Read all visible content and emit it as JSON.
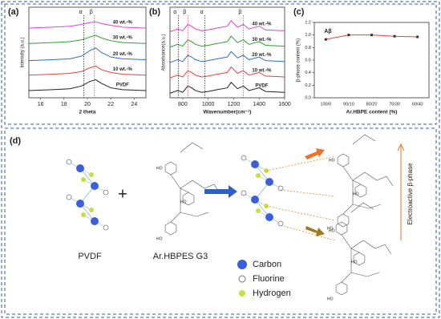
{
  "chart_data": [
    {
      "type": "line",
      "panel": "(a)",
      "xlabel": "2 theta",
      "ylabel": "Intensity (a.u.)",
      "xlim": [
        15,
        25
      ],
      "xticks": [
        16,
        18,
        20,
        22,
        24
      ],
      "ylim": [
        0,
        100
      ],
      "x": [
        15,
        17,
        18.5,
        19.5,
        20.2,
        20.7,
        21.2,
        22,
        23,
        25
      ],
      "series": [
        {
          "name": "PVDF",
          "color": "#222222",
          "values": [
            8,
            9,
            10,
            13,
            18,
            20,
            16,
            11,
            9,
            8
          ]
        },
        {
          "name": "10 wt.-%",
          "color": "#e8413c",
          "values": [
            25,
            26,
            27,
            29,
            33,
            35,
            31,
            28,
            26,
            25
          ]
        },
        {
          "name": "20 wt.-%",
          "color": "#2a6fd6",
          "values": [
            41,
            42,
            43,
            46,
            52,
            55,
            50,
            45,
            43,
            42
          ]
        },
        {
          "name": "30 wt.-%",
          "color": "#2ca02c",
          "values": [
            60,
            61,
            62,
            64,
            67,
            69,
            66,
            63,
            61,
            60
          ]
        },
        {
          "name": "40 wt.-%",
          "color": "#e040e0",
          "values": [
            77,
            78,
            79,
            81,
            83,
            84,
            82,
            80,
            78,
            77
          ]
        }
      ],
      "annotations": [
        {
          "label": "α",
          "x": 19.7,
          "color": "#222222"
        },
        {
          "label": "β",
          "x": 20.6,
          "color": "#e8413c"
        }
      ]
    },
    {
      "type": "line",
      "panel": "(b)",
      "xlabel": "Wavenumber(cm⁻¹)",
      "ylabel": "Absorbance(a.u.)",
      "xlim": [
        700,
        1600
      ],
      "xticks": [
        800,
        1000,
        1200,
        1400,
        1600
      ],
      "ylim": [
        0,
        100
      ],
      "x": [
        700,
        760,
        800,
        840,
        870,
        900,
        950,
        1000,
        1070,
        1150,
        1180,
        1230,
        1275,
        1320,
        1400,
        1450,
        1600
      ],
      "series": [
        {
          "name": "PVDF",
          "color": "#222222",
          "values": [
            5,
            8,
            6,
            13,
            11,
            8,
            6,
            7,
            9,
            11,
            17,
            10,
            13,
            8,
            11,
            7,
            6
          ]
        },
        {
          "name": "10 wt.-%",
          "color": "#e8413c",
          "values": [
            22,
            25,
            23,
            30,
            28,
            25,
            23,
            24,
            26,
            28,
            34,
            27,
            30,
            25,
            28,
            24,
            23
          ]
        },
        {
          "name": "20 wt.-%",
          "color": "#2a6fd6",
          "values": [
            39,
            42,
            40,
            47,
            45,
            42,
            40,
            41,
            43,
            45,
            51,
            44,
            47,
            42,
            45,
            41,
            40
          ]
        },
        {
          "name": "30 wt.-%",
          "color": "#2ca02c",
          "values": [
            56,
            59,
            57,
            64,
            62,
            59,
            57,
            58,
            60,
            62,
            68,
            61,
            64,
            59,
            62,
            58,
            57
          ]
        },
        {
          "name": "40 wt.-%",
          "color": "#e040e0",
          "values": [
            73,
            76,
            74,
            81,
            79,
            76,
            74,
            75,
            77,
            79,
            85,
            78,
            81,
            76,
            79,
            75,
            74
          ]
        }
      ],
      "annotations": [
        {
          "label": "α",
          "x": 765,
          "color": "#222222"
        },
        {
          "label": "β",
          "x": 840,
          "color": "#e8413c"
        },
        {
          "label": "α",
          "x": 975,
          "color": "#222222"
        },
        {
          "label": "β",
          "x": 1275,
          "color": "#e8413c"
        }
      ]
    },
    {
      "type": "line",
      "panel": "(c)",
      "xlabel": "Ar.HBPE content (%)",
      "ylabel": "β-phase content (%)",
      "categories": [
        "100/0",
        "90/10",
        "80/20",
        "70/30",
        "60/40"
      ],
      "values": [
        0.93,
        1.0,
        1.0,
        0.98,
        0.97
      ],
      "color": "#e8413c",
      "marker_color": "#333333",
      "ylim": [
        0,
        1.2
      ],
      "yticks": [
        {
          "value": 0,
          "label": "0.0"
        },
        0.2,
        0.4,
        0.6,
        0.8,
        {
          "value": 1,
          "label": "1.0"
        },
        1.2
      ],
      "annotations": [
        {
          "label": "Aβ",
          "color": "#e8413c"
        }
      ]
    }
  ],
  "diagram": {
    "panel": "(d)",
    "left_label": "PVDF",
    "plus": "+",
    "polymer_label": "Ar.HBPES G3",
    "arrow_text": "Electroactive β-phase",
    "group_label": "HO",
    "legend": [
      {
        "label": "Carbon",
        "color": "#3b5fd9"
      },
      {
        "label": "Fluorine",
        "color": "#ffffff"
      },
      {
        "label": "Hydrogen",
        "color": "#c8e03c"
      }
    ]
  }
}
